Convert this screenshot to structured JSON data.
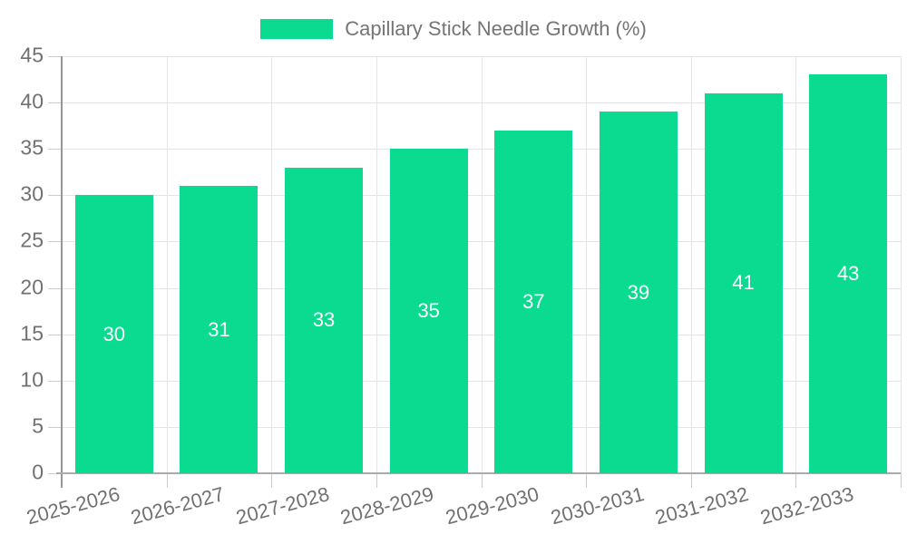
{
  "chart_data": {
    "type": "bar",
    "legend": "Capillary Stick Needle Growth (%)",
    "categories": [
      "2025-2026",
      "2026-2027",
      "2027-2028",
      "2028-2029",
      "2029-2030",
      "2030-2031",
      "2031-2032",
      "2032-2033"
    ],
    "values": [
      30,
      31,
      33,
      35,
      37,
      39,
      41,
      43
    ],
    "value_labels": [
      "30",
      "31",
      "33",
      "35",
      "37",
      "39",
      "41",
      "43"
    ],
    "ylim": [
      0,
      45
    ],
    "yticks": [
      0,
      5,
      10,
      15,
      20,
      25,
      30,
      35,
      40,
      45
    ],
    "xlabel": "",
    "ylabel": "",
    "title": "",
    "grid": "on",
    "legend_position": "top-center",
    "x_label_rotation_deg": -15,
    "colors": {
      "bar": "#0ADB91",
      "bar_value_text": "#ffffff",
      "axis_text": "#717171",
      "legend_text": "#757575",
      "gridline": "#e5e5e5",
      "tick": "#cccccc",
      "axis_line_y": "#969696",
      "axis_line_x": "#ababab",
      "background": "#ffffff"
    }
  }
}
